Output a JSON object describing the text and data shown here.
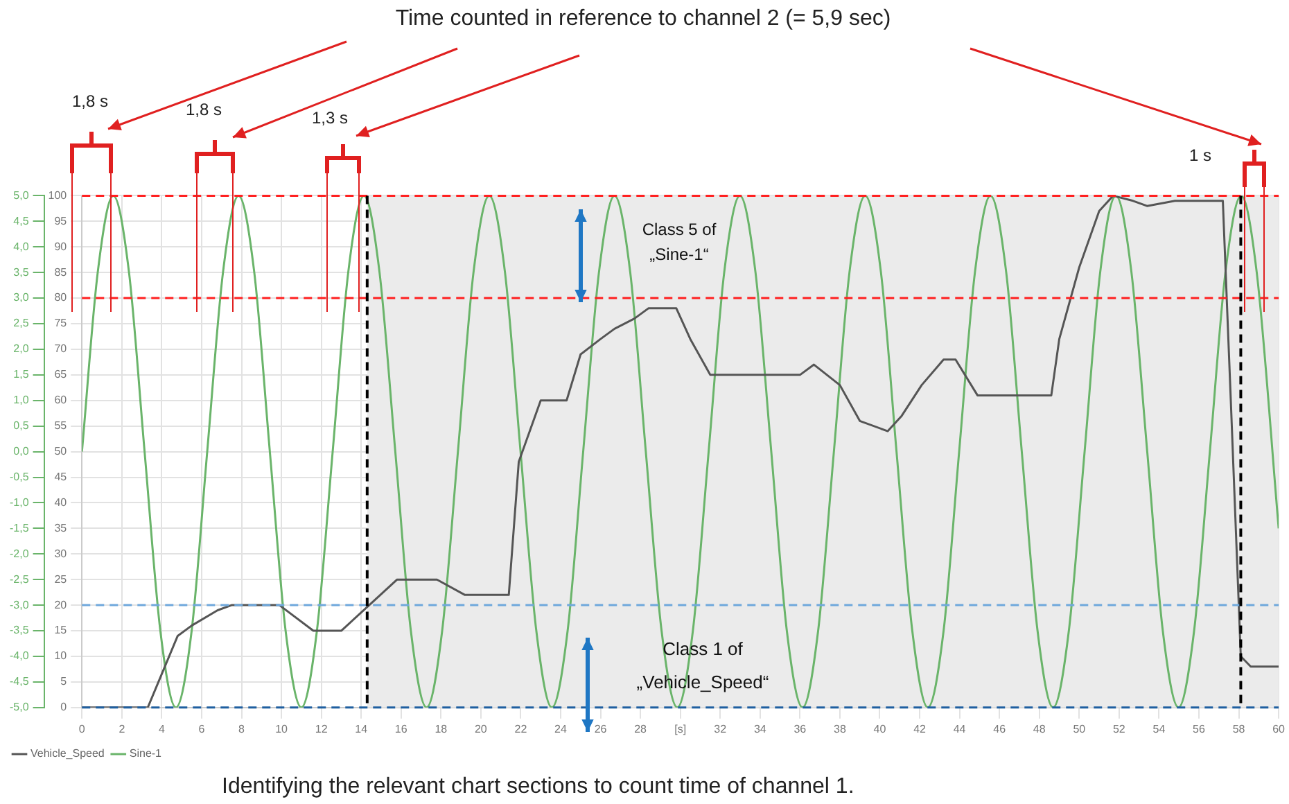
{
  "chart_data": {
    "type": "line",
    "title": "Time counted in reference to channel 2 (= 5,9 sec)",
    "xlim": [
      0,
      60
    ],
    "xticks": [
      0,
      2,
      4,
      6,
      8,
      10,
      12,
      14,
      16,
      18,
      20,
      22,
      24,
      26,
      28,
      {
        "value": 30,
        "label": "[s]"
      },
      32,
      34,
      36,
      38,
      40,
      42,
      44,
      46,
      48,
      50,
      52,
      54,
      56,
      58,
      60
    ],
    "ylim": [
      0,
      100
    ],
    "yticks": [
      0,
      5,
      10,
      15,
      20,
      25,
      30,
      35,
      40,
      45,
      50,
      55,
      60,
      65,
      70,
      75,
      80,
      85,
      90,
      95,
      100
    ],
    "y2lim": [
      -5,
      5
    ],
    "y2ticks": [
      {
        "value": -5,
        "label": "-5,0"
      },
      {
        "value": -4.5,
        "label": "-4,5"
      },
      {
        "value": -4,
        "label": "-4,0"
      },
      {
        "value": -3.5,
        "label": "-3,5"
      },
      {
        "value": -3,
        "label": "-3,0"
      },
      {
        "value": -2.5,
        "label": "-2,5"
      },
      {
        "value": -2,
        "label": "-2,0"
      },
      {
        "value": -1.5,
        "label": "-1,5"
      },
      {
        "value": -1,
        "label": "-1,0"
      },
      {
        "value": -0.5,
        "label": "-0,5"
      },
      {
        "value": 0,
        "label": "0,0"
      },
      {
        "value": 0.5,
        "label": "0,5"
      },
      {
        "value": 1,
        "label": "1,0"
      },
      {
        "value": 1.5,
        "label": "1,5"
      },
      {
        "value": 2,
        "label": "2,0"
      },
      {
        "value": 2.5,
        "label": "2,5"
      },
      {
        "value": 3,
        "label": "3,0"
      },
      {
        "value": 3.5,
        "label": "3,5"
      },
      {
        "value": 4,
        "label": "4,0"
      },
      {
        "value": 4.5,
        "label": "4,5"
      },
      {
        "value": 5,
        "label": "5,0"
      }
    ],
    "series": [
      {
        "name": "Vehicle_Speed",
        "color": "#555555",
        "x": [
          0,
          3.3,
          4.8,
          5.5,
          6.8,
          7.5,
          9.9,
          11.6,
          13,
          14.4,
          15.8,
          17.8,
          19.2,
          21.4,
          21.9,
          23,
          24.3,
          25,
          26,
          26.7,
          27.7,
          28.4,
          29.8,
          30.5,
          31.5,
          36,
          36.7,
          38,
          39,
          40.4,
          41.1,
          42.1,
          43.2,
          43.8,
          44.9,
          48.6,
          49,
          50,
          51,
          51.7,
          52.7,
          53.4,
          54.8,
          57.2,
          57.6,
          58.1,
          58.6,
          60
        ],
        "values": [
          0,
          0,
          14,
          16,
          19,
          20,
          20,
          15,
          15,
          20,
          25,
          25,
          22,
          22,
          48,
          60,
          60,
          69,
          72,
          74,
          76,
          78,
          78,
          72,
          65,
          65,
          67,
          63,
          56,
          54,
          57,
          63,
          68,
          68,
          61,
          61,
          72,
          86,
          97,
          100,
          99,
          98,
          99,
          99,
          60,
          10,
          8,
          8
        ]
      },
      {
        "name": "Sine-1",
        "color": "#6ab46a",
        "axis": "y2",
        "x": [
          0,
          0.79,
          1.57,
          2.36,
          3.14,
          3.93,
          4.71,
          5.5,
          6.28,
          7.07,
          7.85,
          8.64,
          9.42,
          10.21,
          11,
          11.78,
          12.57,
          13.35,
          14.14,
          14.92,
          15.71,
          16.49,
          17.28,
          18.06,
          18.85,
          19.63,
          20.42,
          21.21,
          21.99,
          22.78,
          23.56,
          24.35,
          25.13,
          25.92,
          26.7,
          27.49,
          28.27,
          29.06,
          29.85,
          30.63,
          31.42,
          32.2,
          32.99,
          33.77,
          34.56,
          35.34,
          36.13,
          36.91,
          37.7,
          38.48,
          39.27,
          40.06,
          40.84,
          41.63,
          42.41,
          43.2,
          43.98,
          44.77,
          45.55,
          46.34,
          47.12,
          47.91,
          48.69,
          49.48,
          50.27,
          51.05,
          51.84,
          52.62,
          53.41,
          54.19,
          54.98,
          55.76,
          56.55,
          57.33,
          58.12,
          58.9,
          60
        ],
        "values": [
          0,
          3.5,
          5,
          3.5,
          0,
          -3.5,
          -5,
          -3.5,
          0,
          3.5,
          5,
          3.5,
          0,
          -3.5,
          -5,
          -3.5,
          0,
          3.5,
          5,
          3.5,
          0,
          -3.5,
          -5,
          -3.5,
          0,
          3.5,
          5,
          3.5,
          0,
          -3.5,
          -5,
          -3.5,
          0,
          3.5,
          5,
          3.5,
          0,
          -3.5,
          -5,
          -3.5,
          0,
          3.5,
          5,
          3.5,
          0,
          -3.5,
          -5,
          -3.5,
          0,
          3.5,
          5,
          3.5,
          0,
          -3.5,
          -5,
          -3.5,
          0,
          3.5,
          5,
          3.5,
          0,
          -3.5,
          -5,
          -3.5,
          0,
          3.5,
          5,
          3.5,
          0,
          -3.5,
          -5,
          -3.5,
          0,
          3.5,
          5,
          3.5,
          -1.5
        ]
      }
    ],
    "ref_lines": [
      {
        "axis": "y",
        "value": 100,
        "color": "#ff2020",
        "line_style": "dashed"
      },
      {
        "axis": "y",
        "value": 80,
        "color": "#ff2020",
        "line_style": "dashed"
      },
      {
        "axis": "y",
        "value": 20,
        "color": "#6fa8dc",
        "line_style": "dashed"
      },
      {
        "axis": "y",
        "value": 0,
        "color": "#1f5fa0",
        "line_style": "dashed"
      },
      {
        "axis": "x",
        "value": 14.3,
        "color": "#000000",
        "line_style": "dashed"
      },
      {
        "axis": "x",
        "value": 58.1,
        "color": "#000000",
        "line_style": "dashed"
      }
    ],
    "bands": [
      {
        "axis": "x",
        "from": 14.3,
        "to": 60,
        "color": "#ebebeb"
      }
    ],
    "annotations": [
      "1,8 s",
      "1,8 s",
      "1,3 s",
      "1 s",
      "Class 5 of „Sine-1“",
      "Class 1 of „Vehicle_Speed“",
      "Identifying the relevant chart sections to count time of channel 1."
    ],
    "grid": true,
    "legend": "bottom left",
    "marker": "none",
    "line_style": "solid"
  }
}
